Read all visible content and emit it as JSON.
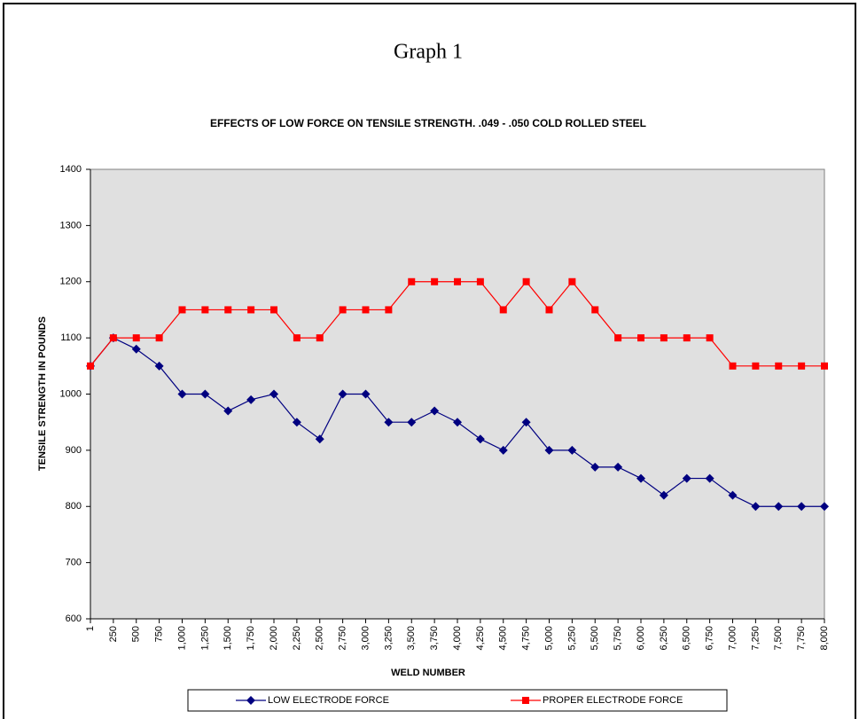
{
  "chart_data": {
    "type": "line",
    "title": "Graph 1",
    "subtitle": "EFFECTS OF LOW FORCE ON TENSILE STRENGTH.  .049 - .050 COLD ROLLED STEEL",
    "x_label": "WELD NUMBER",
    "y_label": "TENSILE STRENGTH IN POUNDS",
    "categories": [
      "1",
      "250",
      "500",
      "750",
      "1,000",
      "1,250",
      "1,500",
      "1,750",
      "2,000",
      "2,250",
      "2,500",
      "2,750",
      "3,000",
      "3,250",
      "3,500",
      "3,750",
      "4,000",
      "4,250",
      "4,500",
      "4,750",
      "5,000",
      "5,250",
      "5,500",
      "5,750",
      "6,000",
      "6,250",
      "6,500",
      "6,750",
      "7,000",
      "7,250",
      "7,500",
      "7,750",
      "8,000"
    ],
    "series": [
      {
        "name": "LOW ELECTRODE FORCE",
        "color": "#000080",
        "marker": "diamond",
        "values": [
          1050,
          1100,
          1080,
          1050,
          1000,
          1000,
          970,
          990,
          1000,
          950,
          920,
          1000,
          1000,
          950,
          950,
          970,
          950,
          920,
          900,
          950,
          900,
          900,
          870,
          870,
          850,
          820,
          850,
          850,
          820,
          800,
          800,
          800,
          800
        ]
      },
      {
        "name": "PROPER ELECTRODE FORCE",
        "color": "#ff0000",
        "marker": "square",
        "values": [
          1050,
          1100,
          1100,
          1100,
          1150,
          1150,
          1150,
          1150,
          1150,
          1100,
          1100,
          1150,
          1150,
          1150,
          1200,
          1200,
          1200,
          1200,
          1150,
          1200,
          1150,
          1200,
          1150,
          1100,
          1100,
          1100,
          1100,
          1100,
          1050,
          1050,
          1050,
          1050,
          1050
        ]
      }
    ],
    "ylim": [
      600,
      1400
    ],
    "yticks": [
      600,
      700,
      800,
      900,
      1000,
      1100,
      1200,
      1300,
      1400
    ],
    "grid": false,
    "plot_background": "#e0e0e0",
    "legend": "bottom"
  }
}
